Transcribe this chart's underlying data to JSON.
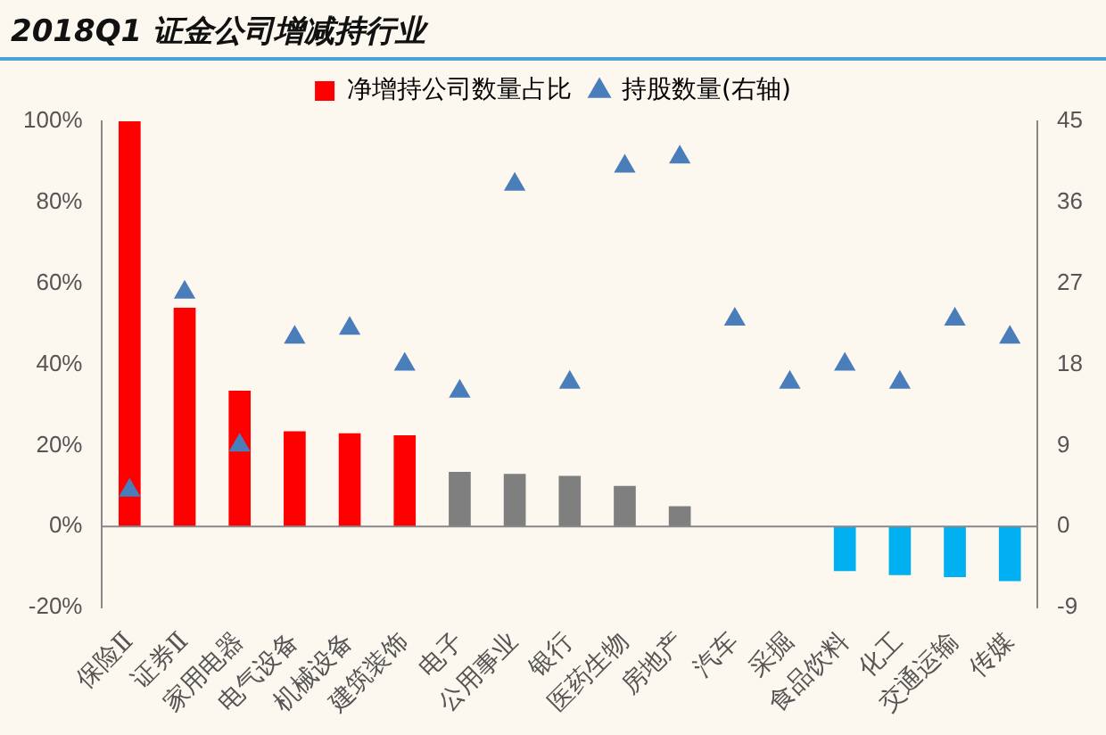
{
  "chart_data": {
    "type": "bar",
    "title": "2018Q1 证金公司增减持行业",
    "categories": [
      "保险Ⅱ",
      "证券Ⅱ",
      "家用电器",
      "电气设备",
      "机械设备",
      "建筑装饰",
      "电子",
      "公用事业",
      "银行",
      "医药生物",
      "房地产",
      "汽车",
      "采掘",
      "食品饮料",
      "化工",
      "交通运输",
      "传媒"
    ],
    "series": [
      {
        "name": "净增持公司数量占比",
        "color": "#ff0000",
        "colors": [
          "#ff0000",
          "#ff0000",
          "#ff0000",
          "#ff0000",
          "#ff0000",
          "#ff0000",
          "#7f7f7f",
          "#7f7f7f",
          "#7f7f7f",
          "#7f7f7f",
          "#7f7f7f",
          "#7f7f7f",
          "#7f7f7f",
          "#00b0f0",
          "#00b0f0",
          "#00b0f0",
          "#00b0f0"
        ],
        "values": [
          100,
          54,
          33.5,
          23.5,
          23,
          22.5,
          13.5,
          13,
          12.5,
          10,
          5,
          0,
          0,
          -11,
          -12,
          -12.5,
          -13.5
        ]
      },
      {
        "name": "持股数量(右轴)",
        "type": "scatter",
        "axis": "y2",
        "color": "#4a7ebb",
        "marker": "triangle",
        "values": [
          4,
          26,
          9,
          21,
          22,
          18,
          15,
          38,
          16,
          40,
          41,
          23,
          16,
          18,
          16,
          23,
          21
        ]
      }
    ],
    "ylim": [
      -20,
      100
    ],
    "yticks": [
      {
        "value": -20,
        "label": "-20%"
      },
      {
        "value": 0,
        "label": "0%"
      },
      {
        "value": 20,
        "label": "20%"
      },
      {
        "value": 40,
        "label": "40%"
      },
      {
        "value": 60,
        "label": "60%"
      },
      {
        "value": 80,
        "label": "80%"
      },
      {
        "value": 100,
        "label": "100%"
      }
    ],
    "y2lim": [
      -9,
      45
    ],
    "y2ticks": [
      -9,
      0,
      9,
      18,
      27,
      36,
      45
    ],
    "legend": "top"
  }
}
